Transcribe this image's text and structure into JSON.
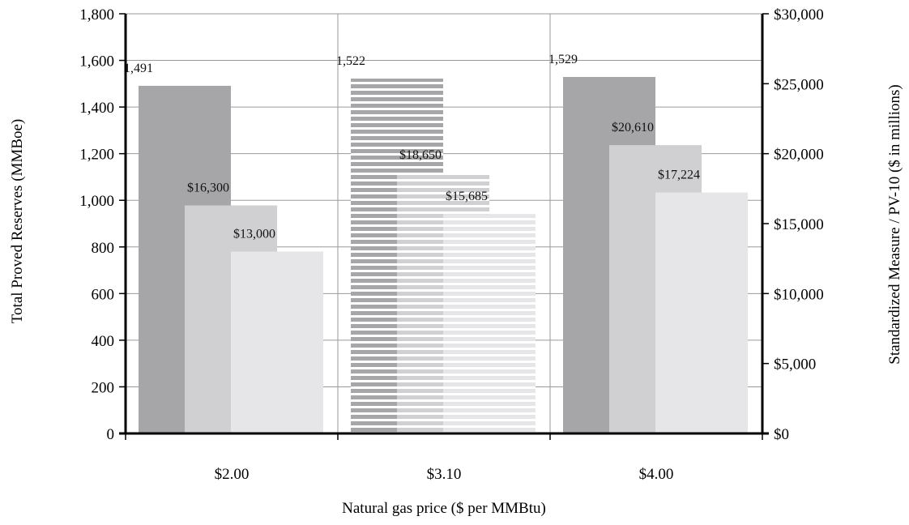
{
  "chart_data": {
    "type": "bar",
    "categories": [
      "$2.00",
      "$3.10",
      "$4.00"
    ],
    "xlabel": "Natural gas price ($ per MMBtu)",
    "ylabel_left": "Total Proved Reserves (MMBoe)",
    "ylabel_right": "Standardized Measure / PV-10 ($ in millions)",
    "ylim_left": [
      0,
      1800
    ],
    "ylim_right": [
      0,
      30000
    ],
    "yticks_left": [
      "0",
      "200",
      "400",
      "600",
      "800",
      "1,000",
      "1,200",
      "1,400",
      "1,600",
      "1,800"
    ],
    "yticks_right": [
      "$0",
      "$5,000",
      "$10,000",
      "$15,000",
      "$20,000",
      "$25,000",
      "$30,000"
    ],
    "grid": true,
    "legend": "none",
    "series": [
      {
        "axis": "left",
        "values": [
          1491,
          1522,
          1529
        ],
        "labels": [
          "1,491",
          "1,522",
          "1,529"
        ],
        "color": "#a6a6a8"
      },
      {
        "axis": "right",
        "values": [
          16300,
          18650,
          20610
        ],
        "labels": [
          "$16,300",
          "$18,650",
          "$20,610"
        ],
        "color": "#d0d0d2"
      },
      {
        "axis": "right",
        "values": [
          13000,
          15685,
          17224
        ],
        "labels": [
          "$13,000",
          "$15,685",
          "$17,224"
        ],
        "color": "#e6e6e8"
      }
    ],
    "striped_category": "$3.10"
  }
}
